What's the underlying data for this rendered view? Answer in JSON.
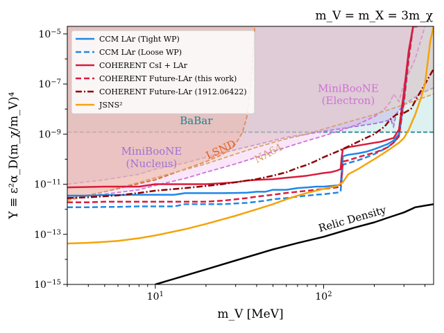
{
  "chart_data": {
    "type": "line",
    "title": "m_V = m_X = 3m_χ",
    "xlabel": "m_V [MeV]",
    "ylabel": "Y ≡ ε²α_D(m_χ/m_V)⁴",
    "xscale": "log",
    "yscale": "log",
    "xlim": [
      3,
      450
    ],
    "ylim": [
      1e-15,
      2e-05
    ],
    "x_ticks": [
      {
        "value": 10,
        "label": "10^1"
      },
      {
        "value": 100,
        "label": "10^2"
      }
    ],
    "y_ticks": [
      {
        "value": 1e-15,
        "label": "10^-15"
      },
      {
        "value": 1e-13,
        "label": "10^-13"
      },
      {
        "value": 1e-11,
        "label": "10^-11"
      },
      {
        "value": 1e-09,
        "label": "10^-9"
      },
      {
        "value": 1e-07,
        "label": "10^-7"
      },
      {
        "value": 1e-05,
        "label": "10^-5"
      }
    ],
    "grid": false,
    "legend_position": "upper-left",
    "series": [
      {
        "name": "CCM LAr (Tight WP)",
        "color": "#1e88e5",
        "dash": "solid",
        "width": 2.5,
        "x": [
          3,
          4,
          5,
          6,
          8,
          10,
          13,
          15,
          20,
          25,
          30,
          35,
          40,
          45,
          50,
          60,
          70,
          80,
          90,
          100,
          110,
          120,
          126,
          128,
          130,
          140,
          160,
          180,
          200,
          220,
          240,
          260,
          280,
          300,
          320,
          340,
          360
        ],
        "y": [
          3.5e-12,
          3.5e-12,
          3.7e-12,
          3.7e-12,
          3.8e-12,
          3.8e-12,
          3.8e-12,
          4.4e-12,
          4.4e-12,
          4.4e-12,
          4.5e-12,
          4.6e-12,
          5e-12,
          5e-12,
          6e-12,
          6e-12,
          7e-12,
          7.5e-12,
          8e-12,
          8e-12,
          8.5e-12,
          9e-12,
          9.5e-12,
          3e-11,
          1.3e-10,
          1.5e-10,
          1.7e-10,
          2e-10,
          2.5e-10,
          3.2e-10,
          4e-10,
          5.5e-10,
          1e-09,
          3e-08,
          2e-06,
          2e-05,
          2e-05
        ]
      },
      {
        "name": "CCM LAr (Loose WP)",
        "color": "#1e88e5",
        "dash": "dashed",
        "width": 2.5,
        "x": [
          3,
          4,
          5,
          6,
          8,
          10,
          13,
          15,
          20,
          25,
          30,
          35,
          40,
          45,
          50,
          60,
          70,
          80,
          90,
          100,
          110,
          120,
          126,
          128,
          130,
          140,
          160,
          180,
          200,
          220,
          240,
          260,
          280,
          300,
          320,
          340,
          360
        ],
        "y": [
          1.2e-12,
          1.2e-12,
          1.25e-12,
          1.25e-12,
          1.3e-12,
          1.3e-12,
          1.3e-12,
          1.6e-12,
          1.6e-12,
          1.6e-12,
          1.7e-12,
          1.8e-12,
          2e-12,
          2.2e-12,
          2.5e-12,
          2.8e-12,
          3.2e-12,
          3.5e-12,
          3.8e-12,
          4e-12,
          4.3e-12,
          4.6e-12,
          5e-12,
          1.5e-11,
          6e-11,
          7e-11,
          9e-11,
          1.2e-10,
          1.6e-10,
          2.2e-10,
          3e-10,
          4.5e-10,
          8e-10,
          2.5e-08,
          1.5e-06,
          2e-05,
          2e-05
        ]
      },
      {
        "name": "COHERENT CsI + LAr",
        "color": "#d81b3c",
        "dash": "solid",
        "width": 2.5,
        "x": [
          3,
          5,
          8,
          10,
          15,
          20,
          25,
          30,
          35,
          40,
          50,
          60,
          70,
          80,
          90,
          100,
          110,
          120,
          126,
          128,
          130,
          140,
          160,
          180,
          200,
          220,
          240,
          260,
          280,
          300,
          320,
          340,
          360
        ],
        "y": [
          7.5e-12,
          8e-12,
          8e-12,
          1e-11,
          1e-11,
          1e-11,
          1.1e-11,
          1.2e-11,
          1.4e-11,
          1.5e-11,
          1.6e-11,
          1.8e-11,
          2e-11,
          2.2e-11,
          2.5e-11,
          2.8e-11,
          3e-11,
          3.5e-11,
          4e-11,
          1.2e-10,
          2.5e-10,
          3e-10,
          3.5e-10,
          4e-10,
          4.5e-10,
          5e-10,
          6e-10,
          7e-10,
          1.5e-09,
          5e-08,
          2e-06,
          2e-05,
          2e-05
        ]
      },
      {
        "name": "COHERENT Future-LAr (this work)",
        "color": "#d81b3c",
        "dash": "dashed",
        "width": 2.5,
        "x": [
          3,
          4,
          5,
          6,
          8,
          10,
          15,
          20,
          25,
          30,
          35,
          40,
          50,
          60,
          70,
          80,
          90,
          100,
          110,
          120,
          126,
          128,
          130,
          140,
          160,
          180,
          200,
          220,
          240,
          260,
          280,
          300,
          320,
          340
        ],
        "y": [
          1.9e-12,
          1.9e-12,
          2e-12,
          2e-12,
          2e-12,
          2e-12,
          2e-12,
          2e-12,
          2.2e-12,
          2.5e-12,
          2.8e-12,
          3.2e-12,
          3.8e-12,
          4.5e-12,
          5e-12,
          5.5e-12,
          6e-12,
          6.5e-12,
          7e-12,
          7.5e-12,
          8e-12,
          2e-11,
          8e-11,
          9e-11,
          1.2e-10,
          1.5e-10,
          1.8e-10,
          2.3e-10,
          3e-10,
          4.5e-10,
          8e-10,
          2e-08,
          1e-06,
          2e-05
        ]
      },
      {
        "name": "COHERENT Future-LAr (1912.06422)",
        "color": "#8b0000",
        "dash": "dashdot",
        "width": 2.5,
        "x": [
          3,
          4,
          5,
          6,
          8,
          10,
          15,
          20,
          25,
          30,
          40,
          50,
          60,
          70,
          80,
          90,
          100,
          120,
          150,
          170,
          200,
          230,
          250,
          270,
          300,
          330,
          360,
          400,
          450
        ],
        "y": [
          2.8e-12,
          3e-12,
          3.3e-12,
          3.6e-12,
          4.5e-12,
          5.5e-12,
          7e-12,
          8.5e-12,
          1e-11,
          1.2e-11,
          1.6e-11,
          2.2e-11,
          3e-11,
          4.5e-11,
          6e-11,
          8.5e-11,
          1.2e-10,
          2e-10,
          4e-10,
          6e-10,
          1e-09,
          2e-09,
          4e-09,
          6e-09,
          7e-09,
          1e-08,
          3e-08,
          1e-07,
          4e-07
        ]
      },
      {
        "name": "JSNS²",
        "color": "#f5a30a",
        "dash": "solid",
        "width": 2.5,
        "x": [
          3,
          4,
          5,
          6,
          8,
          10,
          15,
          20,
          30,
          40,
          50,
          60,
          70,
          80,
          90,
          100,
          120,
          130,
          140,
          160,
          180,
          200,
          220,
          240,
          260,
          280,
          300,
          320,
          350,
          380,
          400,
          430,
          450
        ],
        "y": [
          4.3e-14,
          4.6e-14,
          5e-14,
          5.5e-14,
          7e-14,
          9e-14,
          1.6e-13,
          2.6e-13,
          5.5e-13,
          1e-12,
          1.6e-12,
          2.5e-12,
          3.5e-12,
          4.5e-12,
          5.5e-12,
          6.5e-12,
          8.5e-12,
          1.2e-11,
          2.5e-11,
          4e-11,
          6.5e-11,
          1e-10,
          1.5e-10,
          2.2e-10,
          3.2e-10,
          4.5e-10,
          7e-10,
          1.5e-09,
          6e-09,
          3e-08,
          1e-07,
          5e-06,
          2e-05
        ]
      },
      {
        "name": "Relic Density",
        "color": "#000000",
        "dash": "solid",
        "width": 2.5,
        "x": [
          10,
          20,
          30,
          50,
          70,
          100,
          150,
          200,
          250,
          300,
          330,
          350,
          400,
          450
        ],
        "y": [
          1e-15,
          4e-15,
          9e-15,
          2.5e-14,
          4.5e-14,
          8e-14,
          1.8e-13,
          3e-13,
          5e-13,
          7.5e-13,
          1e-12,
          1.2e-12,
          1.4e-12,
          1.6e-12
        ]
      }
    ],
    "exclusion_regions": [
      {
        "label": "BaBar",
        "color": "#20808d",
        "x": [
          3,
          450
        ],
        "y": [
          1.2e-09,
          1.2e-09
        ]
      },
      {
        "label": "MiniBooNE\n(Nucleus)",
        "color": "#a070d8",
        "x": [
          3,
          5,
          8,
          10,
          15,
          20,
          30,
          40,
          50,
          60,
          80,
          100,
          130,
          160,
          200,
          230,
          250,
          260,
          270,
          300,
          350,
          400,
          450
        ],
        "y": [
          1e-11,
          1.5e-11,
          2.5e-11,
          4e-11,
          7e-11,
          1.2e-10,
          2.4e-10,
          3.8e-10,
          5.5e-10,
          7.5e-10,
          1e-09,
          1.3e-09,
          1.7e-09,
          2.1e-09,
          2.6e-09,
          3.2e-09,
          3.8e-09,
          2e-09,
          6.5e-09,
          1.5e-08,
          3e-08,
          5e-08,
          7e-08
        ]
      },
      {
        "label": "MiniBooNE\n(Electron)",
        "color": "#d070d8",
        "x": [
          3,
          5,
          8,
          10,
          15,
          20,
          30,
          40,
          50,
          60,
          80,
          100,
          130,
          160,
          200,
          230,
          250,
          260,
          280,
          300,
          350,
          400
        ],
        "y": [
          3e-12,
          4e-12,
          6e-12,
          9e-12,
          1.7e-11,
          3e-11,
          6.5e-11,
          1.2e-10,
          2e-10,
          3e-10,
          5.5e-10,
          8.5e-10,
          1.5e-09,
          2.5e-09,
          5e-09,
          1e-08,
          2e-08,
          4e-08,
          2e-08,
          1e-07,
          1e-06,
          2e-05
        ]
      },
      {
        "label": "LSND",
        "color": "#e06020",
        "x": [
          3,
          5,
          10,
          15,
          20,
          25,
          30,
          33,
          35,
          37,
          39
        ],
        "y": [
          2.5e-12,
          5e-12,
          1.5e-11,
          4e-11,
          8e-11,
          1.5e-10,
          4e-10,
          1.2e-09,
          5e-09,
          1e-07,
          2e-05
        ]
      },
      {
        "label": "NA64",
        "color": "#d8a070",
        "x": [
          3,
          5,
          10,
          20,
          30,
          40,
          60,
          80,
          100,
          150,
          200,
          300,
          450
        ],
        "y": [
          2.2e-12,
          5e-12,
          1.8e-11,
          6.5e-11,
          1.6e-10,
          3e-10,
          6.5e-10,
          1e-09,
          1.6e-09,
          3.5e-09,
          6e-09,
          1.5e-08,
          4e-08
        ]
      }
    ],
    "annotations": [
      {
        "text": "BaBar",
        "x": 17.5,
        "y": 2.5e-09,
        "rotate": 0,
        "color": "#20808d"
      },
      {
        "text": "MiniBooNE",
        "x": 9.5,
        "y": 1.5e-10,
        "rotate": 0,
        "color": "#a070d8"
      },
      {
        "text": "(Nucleus)",
        "x": 9.5,
        "y": 4.8e-11,
        "rotate": 0,
        "color": "#a070d8"
      },
      {
        "text": "MiniBooNE",
        "x": 140,
        "y": 4.8e-08,
        "rotate": 0,
        "color": "#d070d8"
      },
      {
        "text": "(Electron)",
        "x": 140,
        "y": 1.6e-08,
        "rotate": 0,
        "color": "#d070d8"
      },
      {
        "text": "LSND",
        "x": 25,
        "y": 1.8e-10,
        "rotate": -25,
        "color": "#e06020"
      },
      {
        "text": "NA64",
        "x": 48,
        "y": 1.3e-10,
        "rotate": -28,
        "color": "#d8a070"
      },
      {
        "text": "Relic Density",
        "x": 150,
        "y": 3e-13,
        "rotate": -16,
        "color": "#000000"
      }
    ]
  }
}
